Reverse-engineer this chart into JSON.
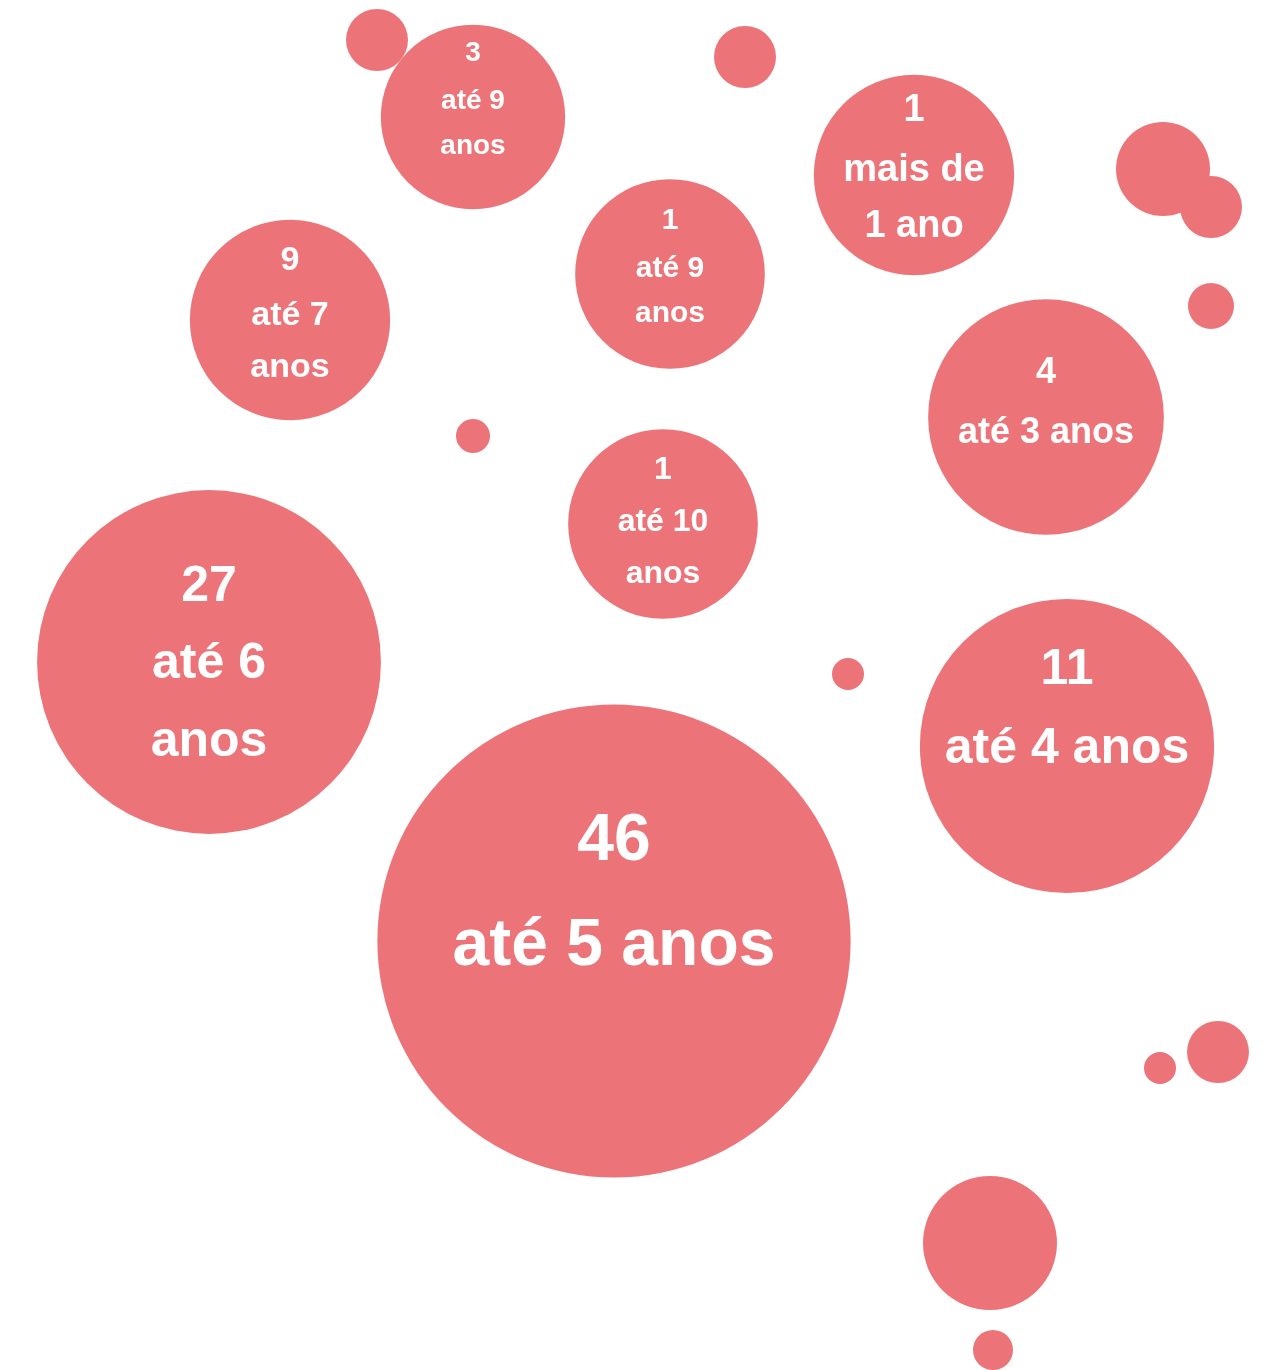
{
  "chart_data": {
    "type": "other",
    "categories": [
      "até 9 anos",
      "mais de 1 ano",
      "até 9 anos",
      "até 7 anos",
      "até 3 anos",
      "até 10 anos",
      "até 6 anos",
      "até 4 anos",
      "até 5 anos"
    ],
    "values": [
      3,
      1,
      1,
      9,
      4,
      1,
      27,
      11,
      46
    ],
    "color": "#ec7479",
    "data_labels": true
  }
}
